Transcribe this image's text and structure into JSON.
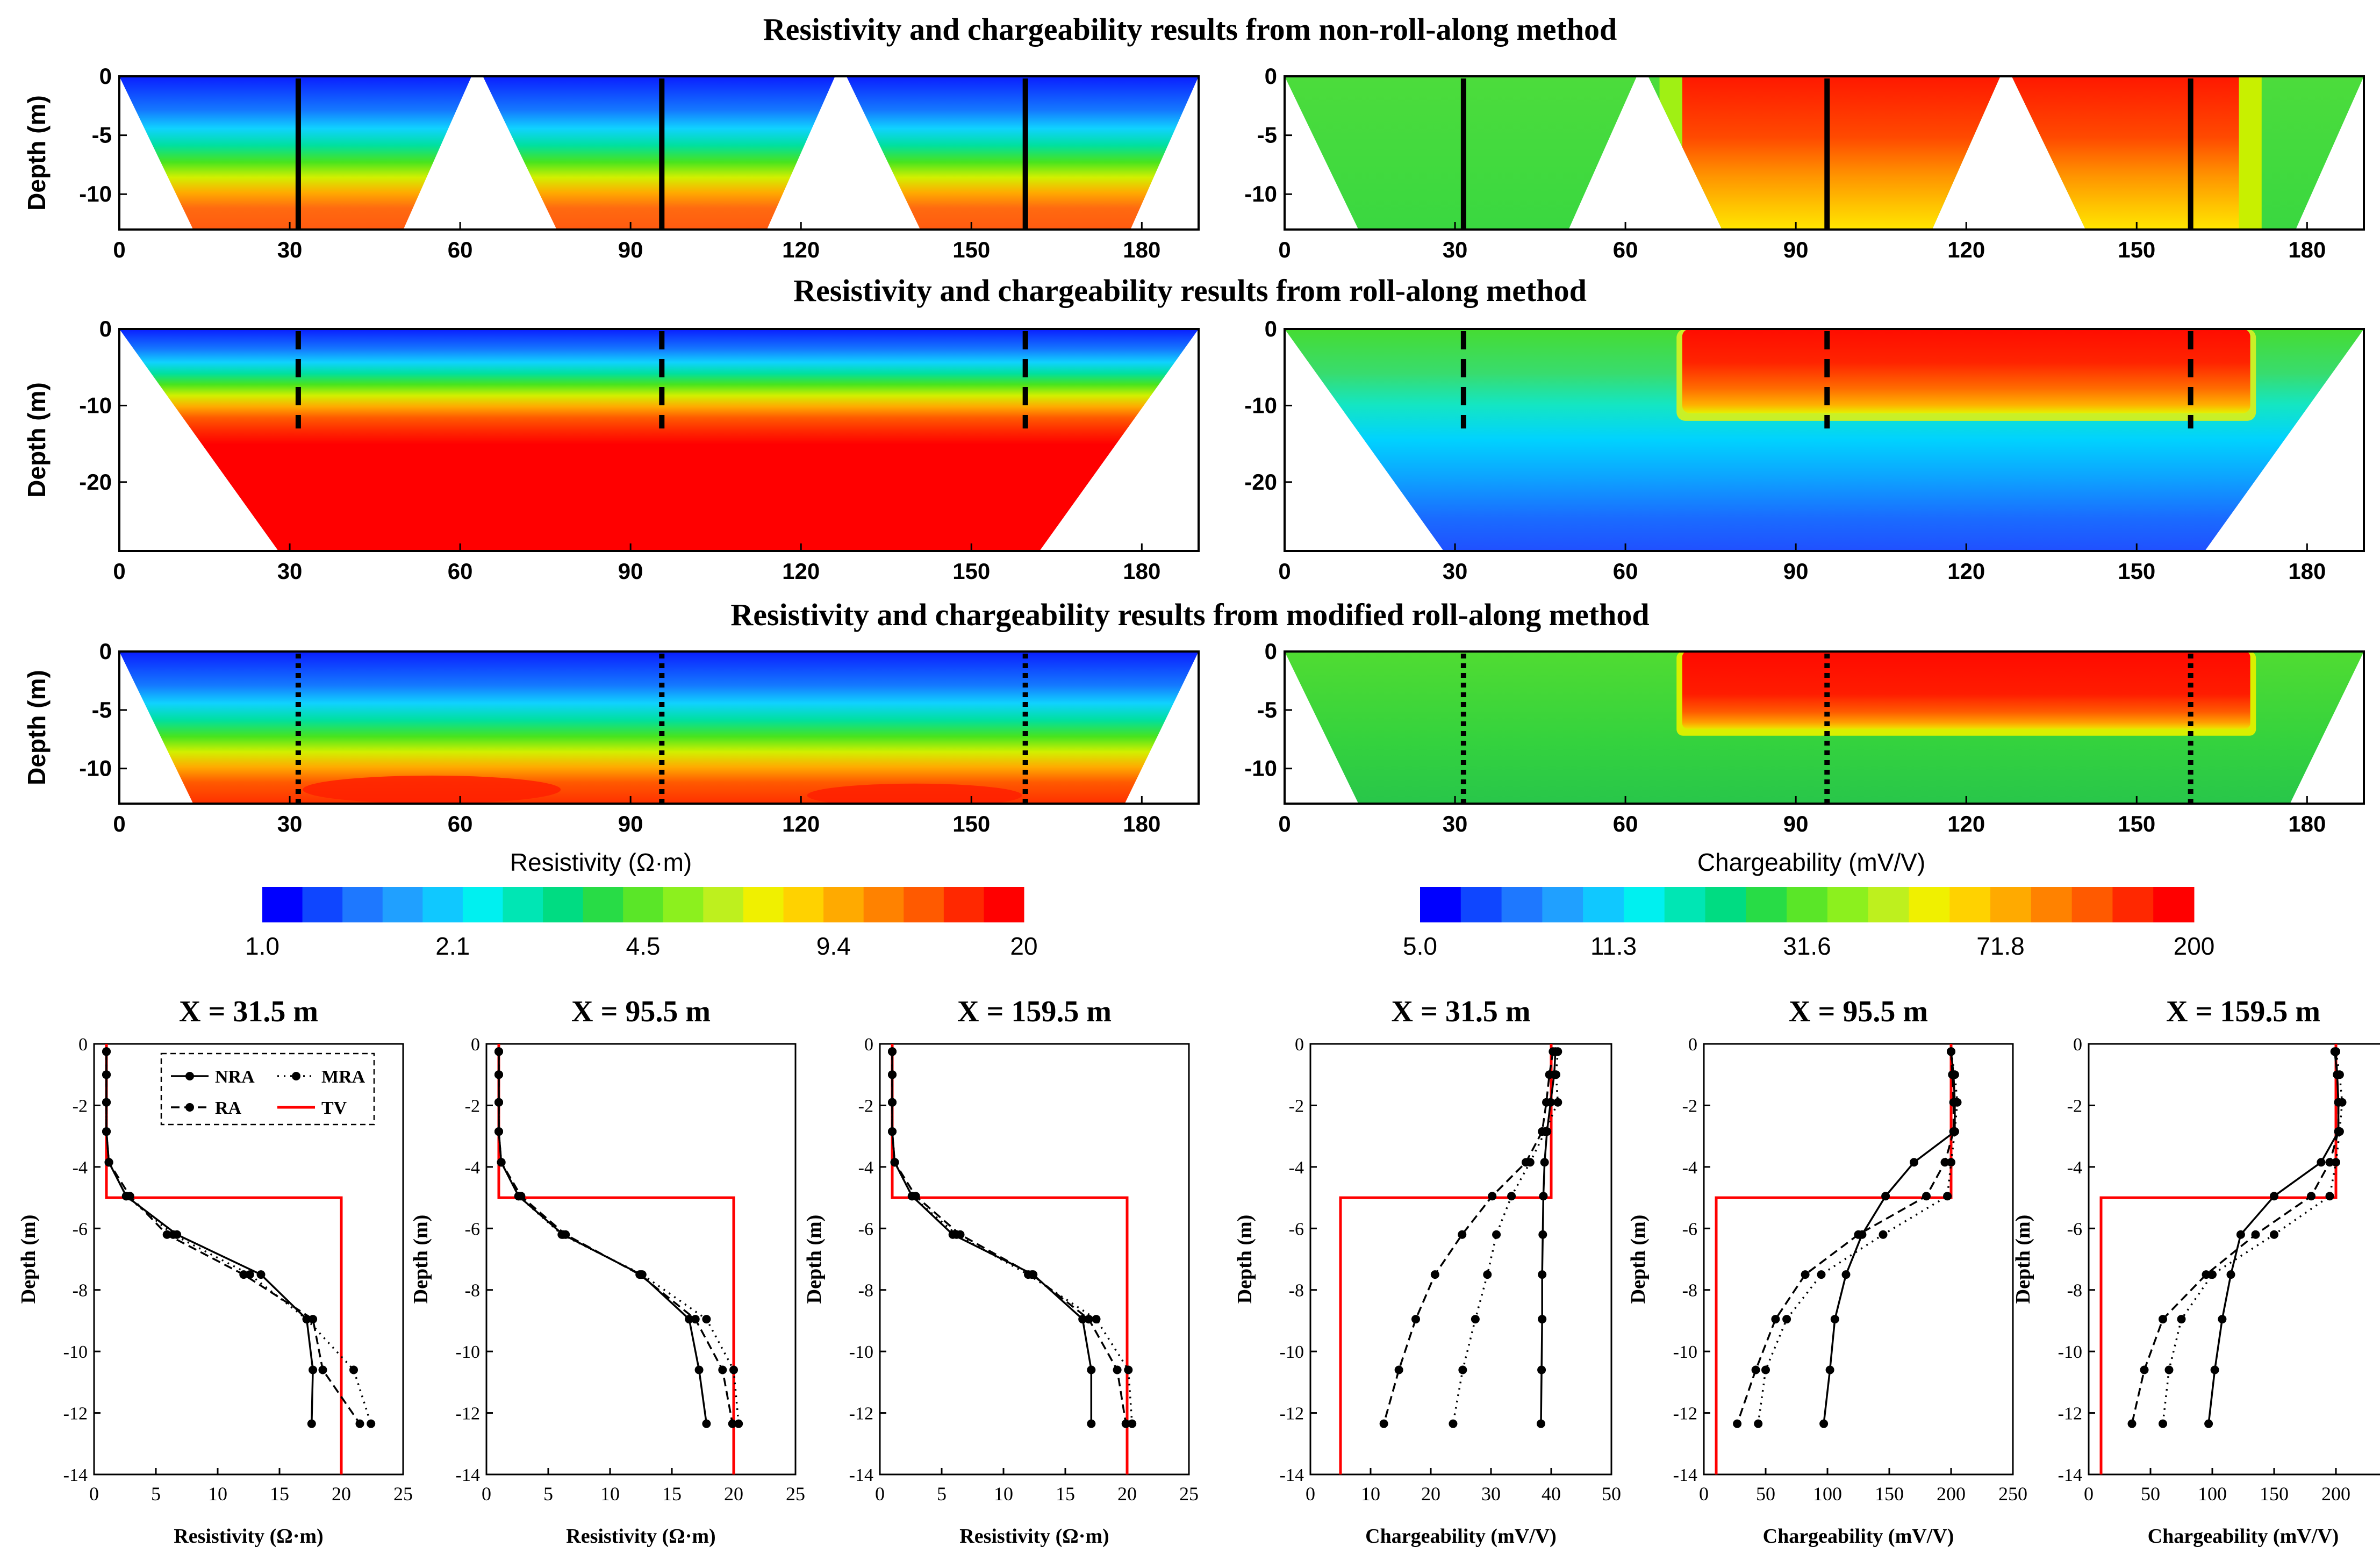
{
  "section_titles": [
    "Resistivity and chargeability results from non-roll-along method",
    "Resistivity and chargeability results from roll-along method",
    "Resistivity and chargeability results from modified roll-along method"
  ],
  "sections": [
    {
      "id": "nra",
      "depth_ticks": [
        0,
        -5,
        -10
      ],
      "depth_range": [
        -13,
        0
      ],
      "x_ticks": [
        0,
        30,
        60,
        90,
        120,
        150,
        180
      ],
      "x_range": [
        0,
        190
      ],
      "marker_style": "solid",
      "panels": [
        {
          "name": "resistivity",
          "wedges": [
            [
              0,
              62,
              13,
              50
            ],
            [
              64,
              126,
              77,
              114
            ],
            [
              128,
              190,
              141,
              178
            ]
          ]
        },
        {
          "name": "chargeability",
          "wedges": [
            [
              0,
              62,
              13,
              50
            ],
            [
              64,
              126,
              77,
              114
            ],
            [
              128,
              190,
              141,
              178
            ]
          ]
        }
      ]
    },
    {
      "id": "ra",
      "depth_ticks": [
        0,
        -10,
        -20
      ],
      "depth_range": [
        -29,
        0
      ],
      "x_ticks": [
        0,
        30,
        60,
        90,
        120,
        150,
        180
      ],
      "x_range": [
        0,
        190
      ],
      "marker_style": "dashed",
      "panels": [
        {
          "name": "resistivity",
          "wedges": [
            [
              0,
              190,
              28,
              162
            ]
          ]
        },
        {
          "name": "chargeability",
          "wedges": [
            [
              0,
              190,
              28,
              162
            ]
          ]
        }
      ]
    },
    {
      "id": "mra",
      "depth_ticks": [
        0,
        -5,
        -10
      ],
      "depth_range": [
        -13,
        0
      ],
      "x_ticks": [
        0,
        30,
        60,
        90,
        120,
        150,
        180
      ],
      "x_range": [
        0,
        190
      ],
      "marker_style": "dotted",
      "panels": [
        {
          "name": "resistivity",
          "wedges": [
            [
              0,
              190,
              13,
              177
            ]
          ]
        },
        {
          "name": "chargeability",
          "wedges": [
            [
              0,
              190,
              13,
              177
            ]
          ]
        }
      ]
    }
  ],
  "marker_positions": [
    31.5,
    95.5,
    159.5
  ],
  "ylabel_depth": "Depth (m)",
  "colorbars": [
    {
      "label": "Resistivity (Ω·m)",
      "ticks": [
        "1.0",
        "2.1",
        "4.5",
        "9.4",
        "20"
      ]
    },
    {
      "label": "Chargeability (mV/V)",
      "ticks": [
        "5.0",
        "11.3",
        "31.6",
        "71.8",
        "200"
      ]
    }
  ],
  "colorbar_colors": [
    "#0000ff",
    "#0f46ff",
    "#1e78ff",
    "#20a0ff",
    "#10c8ff",
    "#00f0f0",
    "#00e6b4",
    "#00dc82",
    "#28dc46",
    "#5ae628",
    "#8cf01e",
    "#bef01e",
    "#f0f000",
    "#ffd200",
    "#ffaa00",
    "#ff8200",
    "#ff5a00",
    "#ff2800",
    "#ff0000"
  ],
  "chart_data": {
    "type": "line",
    "profile_ylabel": "Depth (m)",
    "y_range": [
      -14,
      0
    ],
    "y_ticks": [
      0,
      -2,
      -4,
      -6,
      -8,
      -10,
      -12,
      -14
    ],
    "legend": [
      {
        "key": "NRA",
        "label": "NRA",
        "style": "solid"
      },
      {
        "key": "MRA",
        "label": "MRA",
        "style": "dotted"
      },
      {
        "key": "RA",
        "label": "RA",
        "style": "dashed"
      },
      {
        "key": "TV",
        "label": "TV",
        "style": "red"
      }
    ],
    "depths": [
      -0.25,
      -1.0,
      -1.9,
      -2.85,
      -3.85,
      -4.95,
      -6.2,
      -7.5,
      -8.95,
      -10.6,
      -12.35
    ],
    "panels": [
      {
        "title": "X = 31.5 m",
        "xlabel": "Resistivity (Ω·m)",
        "xlim": [
          0,
          25
        ],
        "x_ticks": [
          0,
          5,
          10,
          15,
          20,
          25
        ],
        "series": {
          "NRA": [
            1.0,
            1.0,
            1.0,
            1.0,
            1.2,
            2.6,
            6.7,
            13.5,
            17.2,
            17.7,
            17.6
          ],
          "MRA": [
            1.0,
            1.0,
            1.0,
            1.0,
            1.2,
            2.6,
            6.4,
            12.6,
            17.2,
            21.0,
            22.4
          ],
          "RA": [
            1.0,
            1.0,
            1.0,
            1.0,
            1.2,
            2.9,
            5.9,
            12.1,
            17.7,
            18.5,
            21.5
          ]
        },
        "tv": [
          [
            1.0,
            0
          ],
          [
            1.0,
            -5
          ],
          [
            20,
            -5
          ],
          [
            20,
            -14
          ]
        ],
        "show_legend": true
      },
      {
        "title": "X = 95.5 m",
        "xlabel": "Resistivity (Ω·m)",
        "xlim": [
          0,
          25
        ],
        "x_ticks": [
          0,
          5,
          10,
          15,
          20,
          25
        ],
        "series": {
          "NRA": [
            1.0,
            1.0,
            1.0,
            1.0,
            1.2,
            2.6,
            6.2,
            12.5,
            16.4,
            17.2,
            17.8
          ],
          "MRA": [
            1.0,
            1.0,
            1.0,
            1.0,
            1.2,
            2.6,
            6.1,
            12.6,
            17.8,
            20.0,
            20.4
          ],
          "RA": [
            1.0,
            1.0,
            1.0,
            1.0,
            1.2,
            2.8,
            6.4,
            12.4,
            16.9,
            19.1,
            19.9
          ]
        },
        "tv": [
          [
            1.0,
            0
          ],
          [
            1.0,
            -5
          ],
          [
            20,
            -5
          ],
          [
            20,
            -14
          ]
        ],
        "show_legend": false
      },
      {
        "title": "X = 159.5 m",
        "xlabel": "Resistivity (Ω·m)",
        "xlim": [
          0,
          25
        ],
        "x_ticks": [
          0,
          5,
          10,
          15,
          20,
          25
        ],
        "series": {
          "NRA": [
            1.0,
            1.0,
            1.0,
            1.0,
            1.2,
            2.6,
            5.9,
            12.4,
            16.4,
            17.1,
            17.1
          ],
          "MRA": [
            1.0,
            1.0,
            1.0,
            1.0,
            1.2,
            2.6,
            6.2,
            12.0,
            17.5,
            20.1,
            20.4
          ],
          "RA": [
            1.0,
            1.0,
            1.0,
            1.0,
            1.2,
            2.9,
            6.5,
            12.3,
            16.9,
            19.2,
            19.9
          ]
        },
        "tv": [
          [
            1.0,
            0
          ],
          [
            1.0,
            -5
          ],
          [
            20,
            -5
          ],
          [
            20,
            -14
          ]
        ],
        "show_legend": false
      },
      {
        "title": "X = 31.5 m",
        "xlabel": "Chargeability (mV/V)",
        "xlim": [
          0,
          50
        ],
        "x_ticks": [
          0,
          10,
          20,
          30,
          40,
          50
        ],
        "series": {
          "NRA": [
            40.7,
            40.5,
            39.9,
            39.3,
            38.9,
            38.7,
            38.6,
            38.5,
            38.5,
            38.4,
            38.3
          ],
          "MRA": [
            41.1,
            40.8,
            41.1,
            39.0,
            36.5,
            33.4,
            30.9,
            29.4,
            27.4,
            25.3,
            23.7
          ],
          "RA": [
            40.3,
            39.7,
            39.2,
            38.5,
            35.8,
            30.2,
            25.2,
            20.7,
            17.5,
            14.7,
            12.2
          ]
        },
        "tv": [
          [
            40,
            0
          ],
          [
            40,
            -5
          ],
          [
            5,
            -5
          ],
          [
            5,
            -14
          ]
        ],
        "show_legend": false
      },
      {
        "title": "X = 95.5 m",
        "xlabel": "Chargeability (mV/V)",
        "xlim": [
          0,
          250
        ],
        "x_ticks": [
          0,
          50,
          100,
          150,
          200,
          250
        ],
        "series": {
          "NRA": [
            200,
            202,
            203,
            203,
            170,
            147,
            128,
            115,
            106,
            102,
            97
          ],
          "MRA": [
            200,
            203,
            205,
            203,
            200,
            197,
            145,
            95,
            67,
            50,
            44
          ],
          "RA": [
            200,
            201,
            202,
            202,
            195,
            180,
            125,
            82,
            58,
            42,
            27
          ]
        },
        "tv": [
          [
            200,
            0
          ],
          [
            200,
            -5
          ],
          [
            10,
            -5
          ],
          [
            10,
            -14
          ]
        ],
        "show_legend": false
      },
      {
        "title": "X = 159.5 m",
        "xlabel": "Chargeability (mV/V)",
        "xlim": [
          0,
          250
        ],
        "x_ticks": [
          0,
          50,
          100,
          150,
          200,
          250
        ],
        "series": {
          "NRA": [
            199,
            201,
            202,
            202,
            188,
            150,
            123,
            115,
            108,
            102,
            97
          ],
          "MRA": [
            200,
            203,
            205,
            203,
            200,
            195,
            150,
            100,
            75,
            65,
            60
          ],
          "RA": [
            200,
            201,
            202,
            202,
            195,
            180,
            135,
            95,
            60,
            45,
            35
          ]
        },
        "tv": [
          [
            200,
            0
          ],
          [
            200,
            -5
          ],
          [
            10,
            -5
          ],
          [
            10,
            -14
          ]
        ],
        "show_legend": false
      }
    ]
  }
}
